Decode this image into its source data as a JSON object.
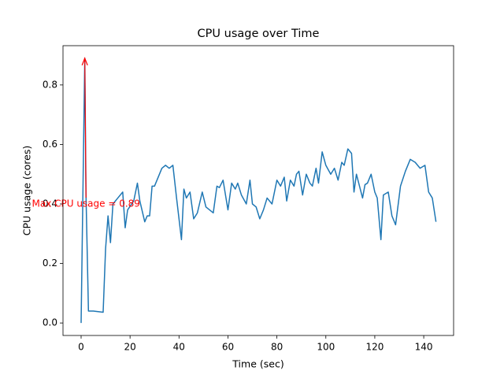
{
  "chart_data": {
    "type": "line",
    "title": "CPU usage over Time",
    "x_label": "Time (sec)",
    "y_label": "CPU usage (cores)",
    "series": [
      {
        "name": "CPU usage",
        "color": "#1f77b4",
        "x": [
          0,
          1.5,
          2,
          3,
          5,
          7,
          9,
          10,
          11,
          12,
          13,
          14,
          15,
          17,
          18,
          19,
          21.5,
          23,
          24,
          26,
          27,
          28,
          29,
          30,
          33,
          34.5,
          36,
          37.5,
          39,
          41,
          42,
          43,
          44.5,
          46,
          47.5,
          49.5,
          51,
          54,
          55.5,
          56.5,
          58,
          60,
          61.5,
          63,
          64,
          65.5,
          67.5,
          69,
          70,
          71.5,
          73,
          74.5,
          76,
          78,
          80,
          81.5,
          83,
          84,
          85.5,
          87,
          88,
          89,
          90.5,
          92,
          93.5,
          94.5,
          96,
          97,
          98.5,
          100,
          102,
          103.5,
          105,
          106.5,
          107.5,
          109,
          110.5,
          111.5,
          112.5,
          115,
          116,
          117,
          118.5,
          120,
          121,
          122.5,
          123.5,
          125.5,
          127,
          128.5,
          130.5,
          132.5,
          134.5,
          136.5,
          138.5,
          140.5,
          142,
          143.5,
          145
        ],
        "values": [
          0.0,
          0.89,
          0.43,
          0.04,
          0.04,
          0.038,
          0.036,
          0.25,
          0.36,
          0.27,
          0.4,
          0.41,
          0.42,
          0.44,
          0.32,
          0.38,
          0.41,
          0.47,
          0.41,
          0.34,
          0.36,
          0.36,
          0.46,
          0.46,
          0.52,
          0.53,
          0.52,
          0.53,
          0.42,
          0.28,
          0.45,
          0.42,
          0.44,
          0.35,
          0.37,
          0.44,
          0.39,
          0.37,
          0.46,
          0.455,
          0.48,
          0.38,
          0.47,
          0.45,
          0.47,
          0.43,
          0.4,
          0.48,
          0.4,
          0.39,
          0.35,
          0.38,
          0.42,
          0.4,
          0.48,
          0.46,
          0.49,
          0.41,
          0.48,
          0.46,
          0.5,
          0.51,
          0.43,
          0.5,
          0.47,
          0.46,
          0.52,
          0.47,
          0.575,
          0.53,
          0.5,
          0.52,
          0.48,
          0.54,
          0.53,
          0.585,
          0.57,
          0.44,
          0.5,
          0.42,
          0.465,
          0.47,
          0.5,
          0.44,
          0.42,
          0.28,
          0.43,
          0.44,
          0.36,
          0.33,
          0.46,
          0.51,
          0.55,
          0.54,
          0.52,
          0.53,
          0.44,
          0.42,
          0.34
        ]
      }
    ],
    "annotation": {
      "text": "Max CPU usage = 0.89",
      "color": "#ff0000",
      "xy": [
        1.5,
        0.89
      ],
      "xytext": [
        2,
        0.4
      ]
    },
    "xlim": [
      -7.4,
      152.2
    ],
    "ylim": [
      -0.042,
      0.932
    ],
    "xticks": [
      0,
      20,
      40,
      60,
      80,
      100,
      120,
      140
    ],
    "yticks": [
      {
        "value": 0,
        "label": "0.0"
      },
      0.2,
      0.4,
      0.6,
      0.8
    ]
  }
}
